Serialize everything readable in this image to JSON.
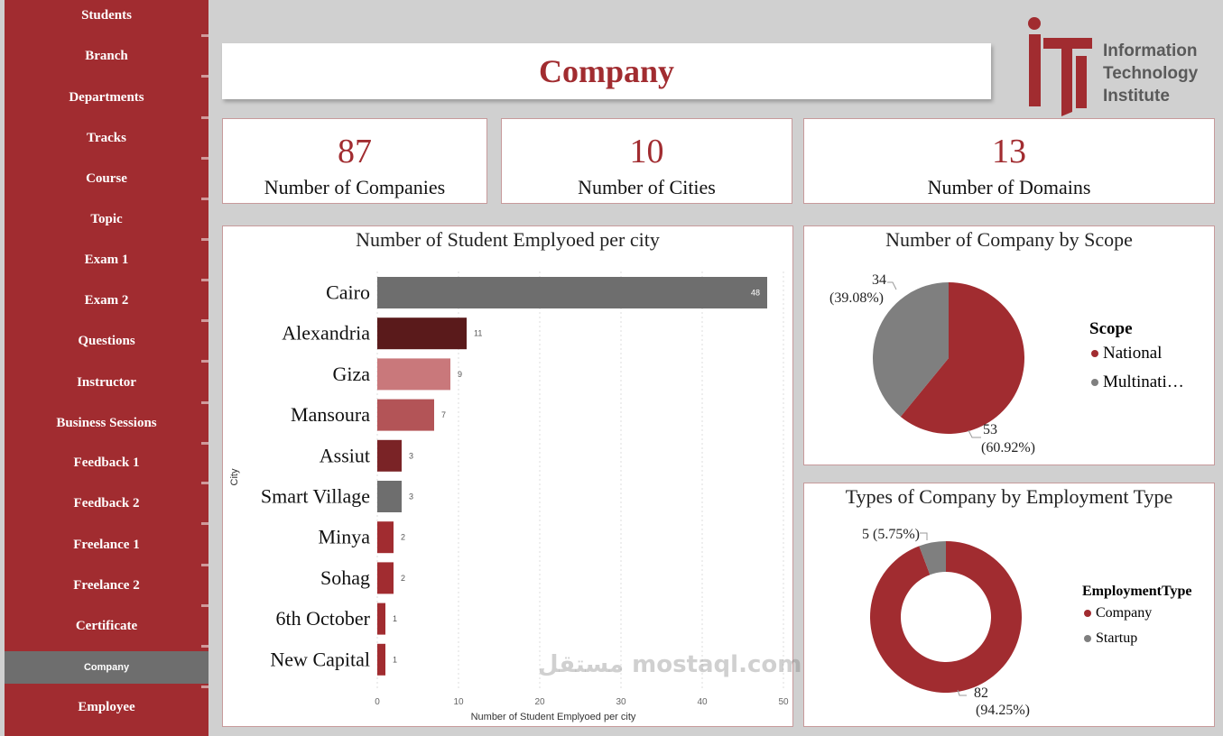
{
  "sidebar": {
    "items": [
      "Students",
      "Branch",
      "Departments",
      "Tracks",
      "Course",
      "Topic",
      "Exam 1",
      "Exam 2",
      "Questions",
      "Instructor",
      "Business Sessions",
      "Feedback 1",
      "Feedback 2",
      "Freelance 1",
      "Freelance 2",
      "Certificate",
      "Company",
      "Employee"
    ],
    "active": "Company"
  },
  "header": {
    "title": "Company"
  },
  "logo": {
    "line1": "Information",
    "line2": "Technology",
    "line3": "Institute"
  },
  "kpis": [
    {
      "value": "87",
      "label": "Number of Companies"
    },
    {
      "value": "10",
      "label": "Number of Cities"
    },
    {
      "value": "13",
      "label": "Number of Domains"
    }
  ],
  "colors": {
    "brand": "#a12c30",
    "grey": "#6e6e6e"
  },
  "watermark": "مستقل mostaql.com",
  "chart_data": [
    {
      "type": "bar",
      "orientation": "horizontal",
      "title": "Number of Student Emplyoed per city",
      "xlabel": "Number of Student Emplyoed per city",
      "ylabel": "City",
      "categories": [
        "Cairo",
        "Alexandria",
        "Giza",
        "Mansoura",
        "Assiut",
        "Smart Village",
        "Minya",
        "Sohag",
        "6th October",
        "New Capital"
      ],
      "values": [
        48,
        11,
        9,
        7,
        3,
        3,
        2,
        2,
        1,
        1
      ],
      "bar_colors": [
        "#6e6e6e",
        "#5a1a1b",
        "#c9787b",
        "#b35457",
        "#7a2326",
        "#6e6e6e",
        "#a12c30",
        "#a12c30",
        "#a12c30",
        "#a12c30"
      ],
      "xlim": [
        0,
        50
      ],
      "xticks": [
        0,
        10,
        20,
        30,
        40,
        50
      ]
    },
    {
      "type": "pie",
      "title": "Number of Company by Scope",
      "legend_title": "Scope",
      "labels": [
        "National",
        "Multinati…"
      ],
      "values": [
        53,
        34
      ],
      "data_labels": [
        "53",
        "34"
      ],
      "percent_labels": [
        "(60.92%)",
        "(39.08%)"
      ],
      "colors": [
        "#a12c30",
        "#7f7f7f"
      ]
    },
    {
      "type": "donut",
      "title": "Types of Company by Employment Type",
      "legend_title": "EmploymentType",
      "labels": [
        "Company",
        "Startup"
      ],
      "values": [
        82,
        5
      ],
      "data_labels": [
        "82",
        "5 (5.75%)"
      ],
      "percent_labels": [
        "(94.25%)",
        ""
      ],
      "colors": [
        "#a12c30",
        "#7f7f7f"
      ]
    }
  ]
}
